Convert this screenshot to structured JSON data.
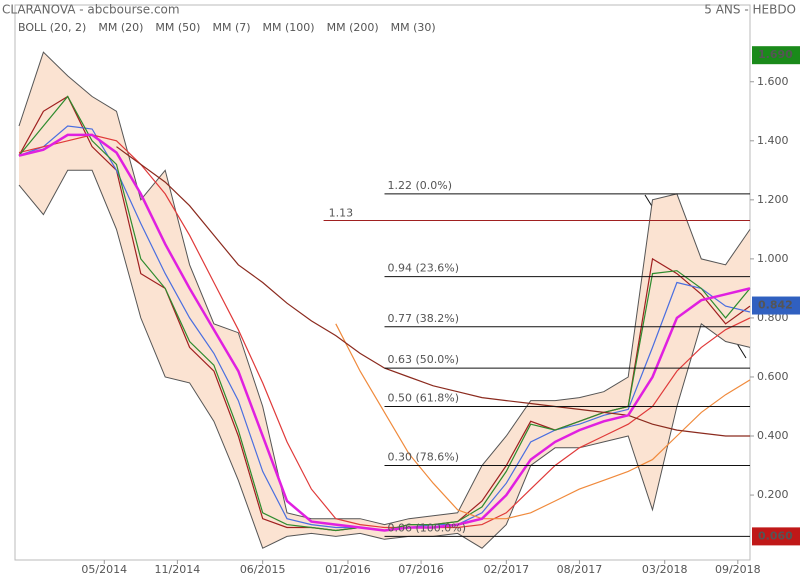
{
  "header": {
    "title": "CLARANOVA - abcbourse.com",
    "period": "5 ANS - HEBDO"
  },
  "chart_data": {
    "type": "line",
    "x": [
      0,
      2,
      4,
      6,
      8,
      10,
      12,
      14,
      16,
      18,
      20,
      22,
      24,
      26,
      28,
      30,
      32,
      34,
      36,
      38,
      40,
      42,
      44,
      46,
      48,
      50,
      52,
      54,
      56,
      58,
      60
    ],
    "xlim": [
      0,
      60
    ],
    "xticks": [
      {
        "value": 7,
        "label": "05/2014"
      },
      {
        "value": 13,
        "label": "11/2014"
      },
      {
        "value": 20,
        "label": "06/2015"
      },
      {
        "value": 27,
        "label": "01/2016"
      },
      {
        "value": 33,
        "label": "07/2016"
      },
      {
        "value": 40,
        "label": "02/2017"
      },
      {
        "value": 46,
        "label": "08/2017"
      },
      {
        "value": 53,
        "label": "03/2018"
      },
      {
        "value": 59,
        "label": "09/2018"
      }
    ],
    "ylim": [
      -0.02,
      1.86
    ],
    "yticks": [
      {
        "value": 0.2,
        "label": "0.200"
      },
      {
        "value": 0.4,
        "label": "0.400"
      },
      {
        "value": 0.6,
        "label": "0.600"
      },
      {
        "value": 0.8,
        "label": "0.800"
      },
      {
        "value": 1.0,
        "label": "1.000"
      },
      {
        "value": 1.2,
        "label": "1.200"
      },
      {
        "value": 1.4,
        "label": "1.400"
      },
      {
        "value": 1.6,
        "label": "1.600"
      }
    ],
    "price": {
      "color": "#a02020",
      "values": [
        1.35,
        1.5,
        1.55,
        1.38,
        1.3,
        0.95,
        0.9,
        0.7,
        0.62,
        0.4,
        0.12,
        0.09,
        0.09,
        0.08,
        0.09,
        0.08,
        0.1,
        0.1,
        0.11,
        0.18,
        0.3,
        0.45,
        0.42,
        0.45,
        0.48,
        0.5,
        1.0,
        0.95,
        0.88,
        0.78,
        0.84
      ]
    },
    "bands": {
      "name": "BOLL (20, 2)",
      "color": "#555555",
      "fill": "#fbe3d2",
      "upper": [
        1.45,
        1.7,
        1.62,
        1.55,
        1.5,
        1.2,
        1.3,
        0.98,
        0.78,
        0.75,
        0.5,
        0.14,
        0.12,
        0.12,
        0.12,
        0.1,
        0.12,
        0.13,
        0.14,
        0.3,
        0.4,
        0.52,
        0.52,
        0.53,
        0.55,
        0.6,
        1.2,
        1.22,
        1.0,
        0.98,
        1.1
      ],
      "lower": [
        1.25,
        1.15,
        1.3,
        1.3,
        1.1,
        0.8,
        0.6,
        0.58,
        0.45,
        0.25,
        0.02,
        0.06,
        0.07,
        0.06,
        0.07,
        0.05,
        0.06,
        0.06,
        0.07,
        0.02,
        0.1,
        0.3,
        0.36,
        0.36,
        0.38,
        0.4,
        0.15,
        0.5,
        0.78,
        0.72,
        0.7
      ]
    },
    "series": [
      {
        "name": "MM (20)",
        "color": "#4a6ee0",
        "values": [
          1.35,
          1.38,
          1.45,
          1.44,
          1.3,
          1.12,
          0.95,
          0.8,
          0.68,
          0.52,
          0.28,
          0.12,
          0.1,
          0.09,
          0.09,
          0.08,
          0.09,
          0.1,
          0.1,
          0.14,
          0.24,
          0.38,
          0.42,
          0.44,
          0.47,
          0.49,
          0.7,
          0.92,
          0.9,
          0.84,
          0.82
        ]
      },
      {
        "name": "MM (50)",
        "color": "#e03a3a",
        "values": [
          1.36,
          1.38,
          1.4,
          1.42,
          1.4,
          1.32,
          1.22,
          1.08,
          0.92,
          0.76,
          0.58,
          0.38,
          0.22,
          0.12,
          0.1,
          0.09,
          0.09,
          0.09,
          0.09,
          0.1,
          0.14,
          0.22,
          0.3,
          0.36,
          0.4,
          0.44,
          0.5,
          0.62,
          0.7,
          0.76,
          0.8
        ]
      },
      {
        "name": "MM (7)",
        "color": "#2e8b2e",
        "values": [
          1.35,
          1.45,
          1.55,
          1.4,
          1.32,
          1.0,
          0.9,
          0.72,
          0.64,
          0.42,
          0.14,
          0.1,
          0.09,
          0.08,
          0.09,
          0.08,
          0.1,
          0.1,
          0.11,
          0.16,
          0.28,
          0.44,
          0.42,
          0.45,
          0.48,
          0.5,
          0.95,
          0.96,
          0.9,
          0.8,
          0.9
        ]
      },
      {
        "name": "MM (100)",
        "color": "#f08a3c",
        "values": [
          null,
          null,
          null,
          null,
          null,
          null,
          null,
          null,
          null,
          null,
          null,
          null,
          null,
          0.78,
          0.62,
          0.48,
          0.34,
          0.24,
          0.15,
          0.12,
          0.12,
          0.14,
          0.18,
          0.22,
          0.25,
          0.28,
          0.32,
          0.4,
          0.48,
          0.54,
          0.59
        ]
      },
      {
        "name": "MM (200)",
        "color": "#8b2a1e",
        "values": [
          null,
          null,
          null,
          null,
          1.38,
          1.32,
          1.26,
          1.18,
          1.08,
          0.98,
          0.92,
          0.85,
          0.79,
          0.74,
          0.68,
          0.63,
          0.6,
          0.57,
          0.55,
          0.53,
          0.52,
          0.51,
          0.5,
          0.49,
          0.48,
          0.47,
          0.44,
          0.42,
          0.41,
          0.4,
          0.4
        ]
      },
      {
        "name": "MM (30)",
        "color": "#e020e0",
        "values": [
          1.35,
          1.37,
          1.42,
          1.42,
          1.36,
          1.22,
          1.05,
          0.9,
          0.76,
          0.62,
          0.4,
          0.18,
          0.11,
          0.1,
          0.09,
          0.08,
          0.09,
          0.09,
          0.1,
          0.12,
          0.2,
          0.32,
          0.38,
          0.42,
          0.45,
          0.47,
          0.6,
          0.8,
          0.86,
          0.88,
          0.9
        ]
      }
    ],
    "fib": {
      "from": 30,
      "levels": [
        {
          "value": 1.22,
          "label": "1.22  (0.0%)"
        },
        {
          "value": 0.94,
          "label": "0.94  (23.6%)"
        },
        {
          "value": 0.77,
          "label": "0.77  (38.2%)"
        },
        {
          "value": 0.63,
          "label": "0.63  (50.0%)"
        },
        {
          "value": 0.5,
          "label": "0.50  (61.8%)"
        },
        {
          "value": 0.3,
          "label": "0.30  (78.6%)"
        },
        {
          "value": 0.06,
          "label": "0.06  (100.0%)"
        }
      ]
    },
    "resistance": {
      "value": 1.13,
      "from": 25,
      "color": "#a02020"
    },
    "markers": [
      {
        "value": 1.69,
        "label": "1.690",
        "color": "#1a8a1a"
      },
      {
        "value": 0.842,
        "label": "0.842",
        "color": "#3060c0"
      },
      {
        "value": 0.06,
        "label": "0.060",
        "color": "#c01818"
      }
    ]
  }
}
